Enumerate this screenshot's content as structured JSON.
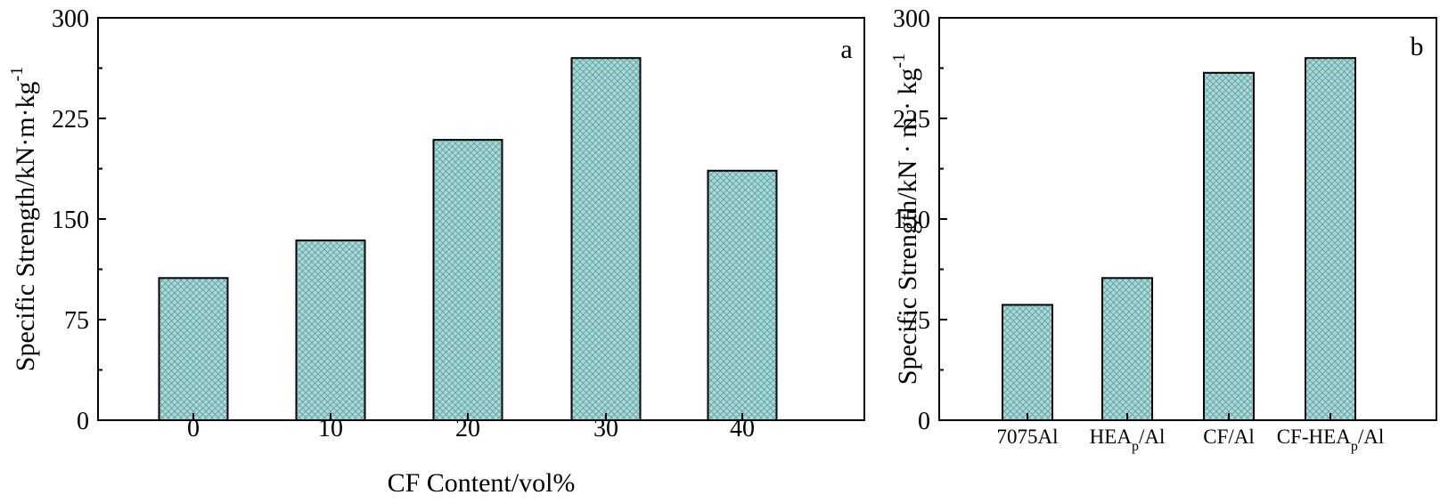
{
  "chart_data": [
    {
      "type": "bar",
      "panel_label": "a",
      "categories": [
        "0",
        "10",
        "20",
        "30",
        "40"
      ],
      "values": [
        106,
        134,
        209,
        270,
        186
      ],
      "xlabel": "CF Content/vol%",
      "ylabel": "Specific Strength/kN·m·kg",
      "ylabel_sup": "-1",
      "ylim": [
        0,
        300
      ],
      "yticks": [
        "0",
        "75",
        "150",
        "225",
        "300"
      ],
      "bar_fill": "#a8d8d8",
      "bar_pattern": "crosshatch",
      "grid": false
    },
    {
      "type": "bar",
      "panel_label": "b",
      "categories": [
        {
          "main": "7075Al",
          "sub": "",
          "tail": ""
        },
        {
          "main": "HEA",
          "sub": "p",
          "tail": "/Al"
        },
        {
          "main": "CF/Al",
          "sub": "",
          "tail": ""
        },
        {
          "main": "CF-HEA",
          "sub": "p",
          "tail": "/Al"
        }
      ],
      "values": [
        86,
        106,
        259,
        270
      ],
      "xlabel": "",
      "ylabel": "Specific Strength/kN · m · kg",
      "ylabel_sup": "-1",
      "ylim": [
        0,
        300
      ],
      "yticks": [
        "0",
        "75",
        "150",
        "225",
        "300"
      ],
      "bar_fill": "#a8d8d8",
      "bar_pattern": "crosshatch",
      "grid": false
    }
  ]
}
